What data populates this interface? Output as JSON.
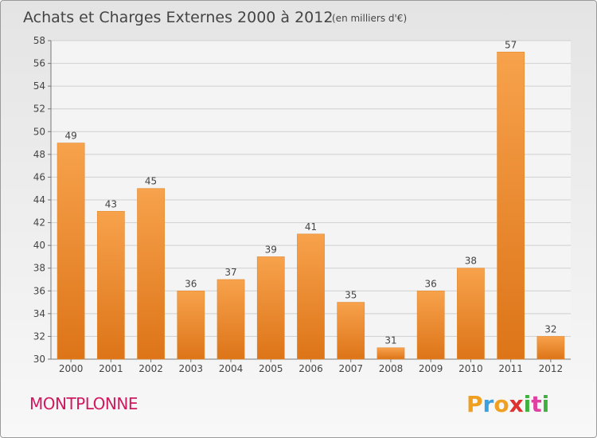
{
  "chart_data": {
    "type": "bar",
    "title": "Achats et Charges Externes 2000 à 2012",
    "subtitle": "(en milliers d'€)",
    "categories": [
      "2000",
      "2001",
      "2002",
      "2003",
      "2004",
      "2005",
      "2006",
      "2007",
      "2008",
      "2009",
      "2010",
      "2011",
      "2012"
    ],
    "values": [
      49,
      43,
      45,
      36,
      37,
      39,
      41,
      35,
      31,
      36,
      38,
      57,
      32
    ],
    "ylim": [
      30,
      58
    ],
    "yticks": [
      30,
      32,
      34,
      36,
      38,
      40,
      42,
      44,
      46,
      48,
      50,
      52,
      54,
      56,
      58
    ],
    "grid": true,
    "bar_color": "#f5a04a"
  },
  "place": "MONTPLONNE",
  "logo": {
    "letters": [
      "P",
      "r",
      "o",
      "x",
      "i",
      "t",
      "i"
    ],
    "colors": [
      "#f0a020",
      "#3aa0e0",
      "#f0a020",
      "#e03030",
      "#40b040",
      "#e040a0",
      "#40b040"
    ]
  }
}
